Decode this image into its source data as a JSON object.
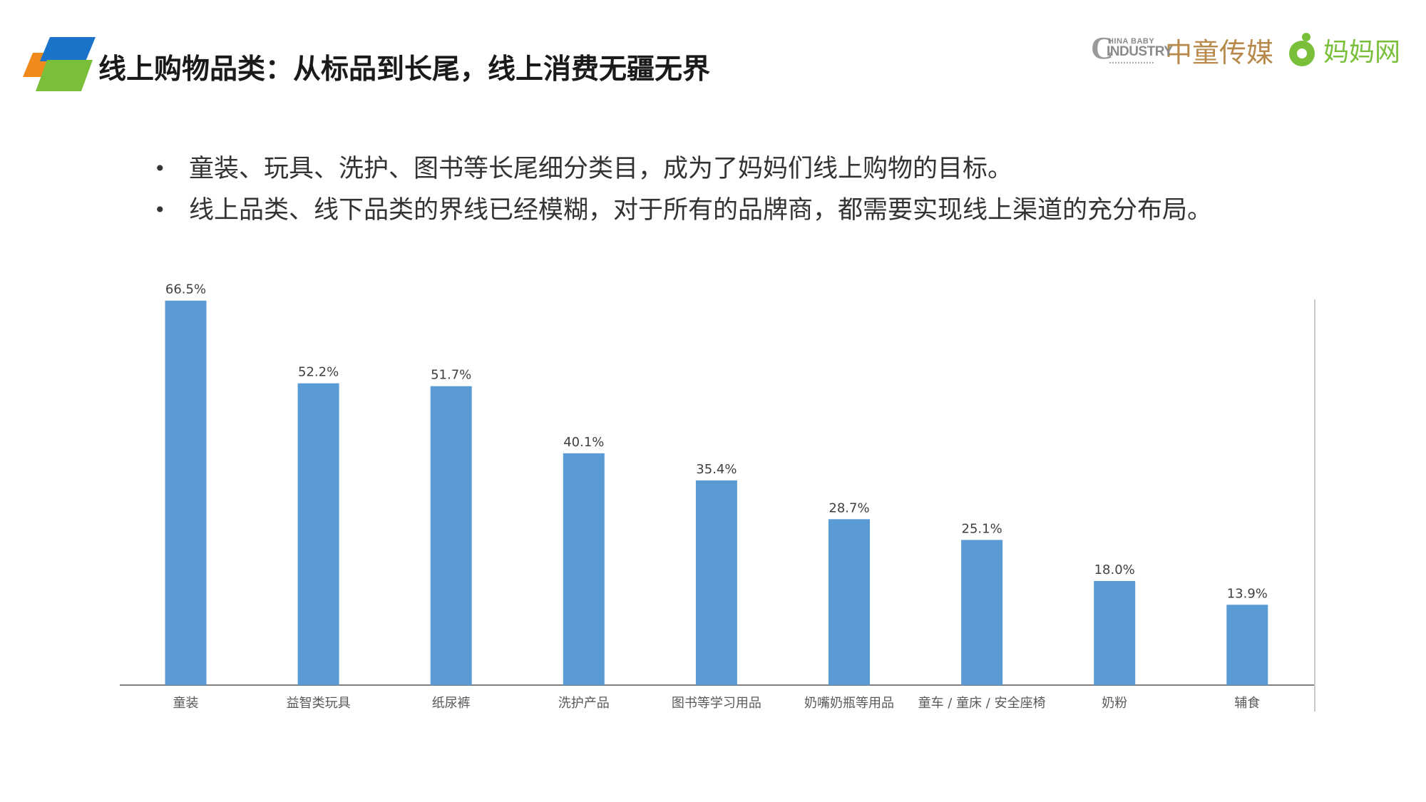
{
  "header": {
    "title": "线上购物品类：从标品到长尾，线上消费无疆无界",
    "brands": [
      {
        "mark_letter": "C",
        "mark_top": "HINA BABY",
        "mark_bottom": "INDUSTRY",
        "text": "中童传媒"
      },
      {
        "icon": "mama-logo-icon",
        "text": "妈妈网"
      }
    ]
  },
  "bullets": [
    "童装、玩具、洗护、图书等长尾细分类目，成为了妈妈们线上购物的目标。",
    "线上品类、线下品类的界线已经模糊，对于所有的品牌商，都需要实现线上渠道的充分布局。"
  ],
  "colors": {
    "bar": "#5b9bd5",
    "logo_blue": "#1a73c8",
    "logo_orange": "#f08a1c",
    "logo_green": "#79bf3a",
    "brand_gold": "#b7894a",
    "brand_green": "#79bf3a"
  },
  "chart_data": {
    "type": "bar",
    "categories": [
      "童装",
      "益智类玩具",
      "纸尿裤",
      "洗护产品",
      "图书等学习用品",
      "奶嘴奶瓶等用品",
      "童车 / 童床 / 安全座椅",
      "奶粉",
      "辅食"
    ],
    "values": [
      66.5,
      52.2,
      51.7,
      40.1,
      35.4,
      28.7,
      25.1,
      18.0,
      13.9
    ],
    "value_labels": [
      "66.5%",
      "52.2%",
      "51.7%",
      "40.1%",
      "35.4%",
      "28.7%",
      "25.1%",
      "18.0%",
      "13.9%"
    ],
    "title": "",
    "xlabel": "",
    "ylabel": "",
    "ylim": [
      0,
      73
    ],
    "grid": false,
    "legend": "none"
  }
}
